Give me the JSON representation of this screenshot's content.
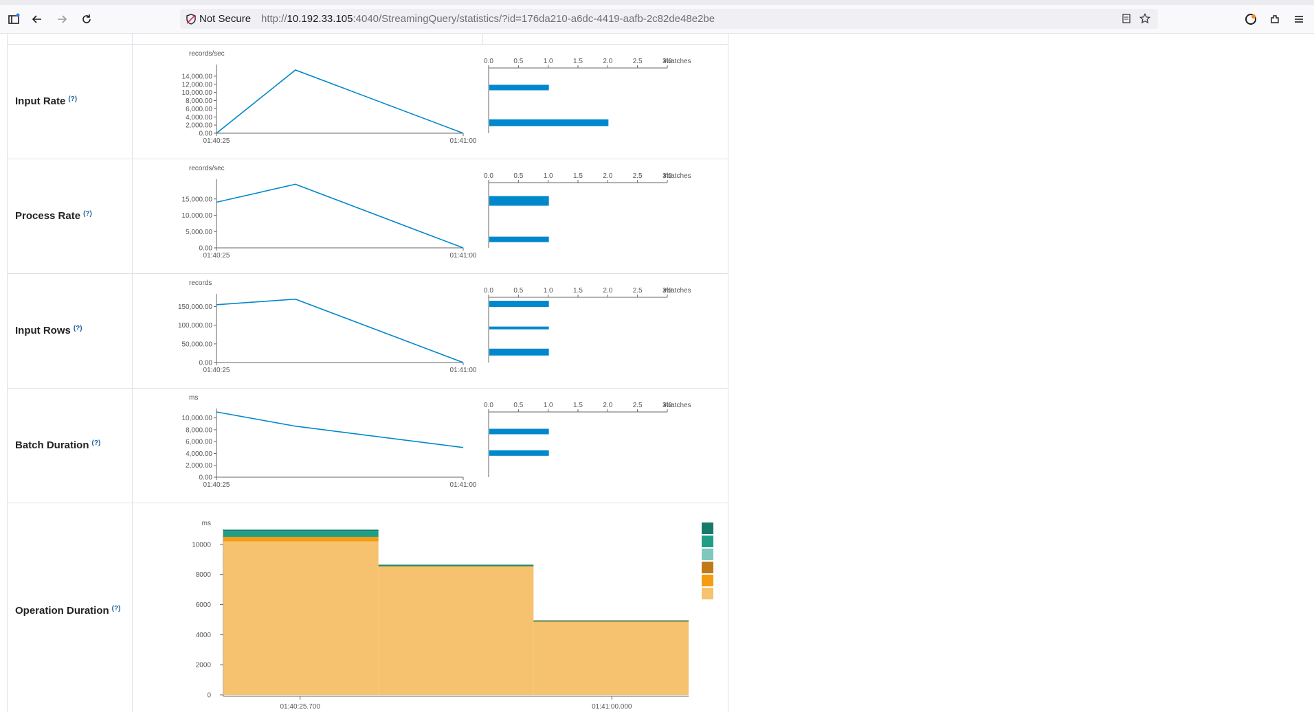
{
  "browser": {
    "security_label": "Not Secure",
    "url_prefix": "http://",
    "url_host": "10.192.33.105",
    "url_rest": ":4040/StreamingQuery/statistics/?id=176da210-a6dc-4419-aafb-2c82de48e2be"
  },
  "rows": [
    {
      "label": "Input Rate",
      "help": "(?)",
      "chart_data": {
        "type": "line",
        "unit": "records/sec",
        "xticks": [
          "01:40:25",
          "01:41:00"
        ],
        "yticks": [
          "0.00",
          "2,000.00",
          "4,000.00",
          "6,000.00",
          "8,000.00",
          "10,000.00",
          "12,000.00",
          "14,000.00"
        ],
        "ymax": 16000,
        "points": [
          [
            0,
            0
          ],
          [
            0.32,
            15500
          ],
          [
            1,
            0
          ]
        ],
        "hist": {
          "unit": "#batches",
          "xticks": [
            "0.0",
            "0.5",
            "1.0",
            "1.5",
            "2.0",
            "2.5",
            "3.0"
          ],
          "xmax": 3,
          "bars": [
            {
              "pos": 0.3,
              "value": 1,
              "thick": 8
            },
            {
              "pos": 0.84,
              "value": 2,
              "thick": 10
            }
          ]
        }
      }
    },
    {
      "label": "Process Rate",
      "help": "(?)",
      "chart_data": {
        "type": "line",
        "unit": "records/sec",
        "xticks": [
          "01:40:25",
          "01:41:00"
        ],
        "yticks": [
          "0.00",
          "5,000.00",
          "10,000.00",
          "15,000.00"
        ],
        "ymax": 20000,
        "points": [
          [
            0,
            14000
          ],
          [
            0.32,
            19500
          ],
          [
            1,
            0
          ]
        ],
        "hist": {
          "unit": "#batches",
          "xticks": [
            "0.0",
            "0.5",
            "1.0",
            "1.5",
            "2.0",
            "2.5",
            "3.0"
          ],
          "xmax": 3,
          "bars": [
            {
              "pos": 0.28,
              "value": 1,
              "thick": 14
            },
            {
              "pos": 0.87,
              "value": 1,
              "thick": 8
            }
          ]
        }
      }
    },
    {
      "label": "Input Rows",
      "help": "(?)",
      "chart_data": {
        "type": "line",
        "unit": "records",
        "xticks": [
          "01:40:25",
          "01:41:00"
        ],
        "yticks": [
          "0.00",
          "50,000.00",
          "100,000.00",
          "150,000.00"
        ],
        "ymax": 175000,
        "points": [
          [
            0,
            155000
          ],
          [
            0.32,
            170000
          ],
          [
            1,
            0
          ]
        ],
        "hist": {
          "unit": "#batches",
          "xticks": [
            "0.0",
            "0.5",
            "1.0",
            "1.5",
            "2.0",
            "2.5",
            "3.0"
          ],
          "xmax": 3,
          "bars": [
            {
              "pos": 0.1,
              "value": 1,
              "thick": 9
            },
            {
              "pos": 0.47,
              "value": 1,
              "thick": 4
            },
            {
              "pos": 0.84,
              "value": 1,
              "thick": 10
            }
          ]
        }
      }
    },
    {
      "label": "Batch Duration",
      "help": "(?)",
      "chart_data": {
        "type": "line",
        "unit": "ms",
        "xticks": [
          "01:40:25",
          "01:41:00"
        ],
        "yticks": [
          "0.00",
          "2,000.00",
          "4,000.00",
          "6,000.00",
          "8,000.00",
          "10,000.00"
        ],
        "ymax": 11000,
        "points": [
          [
            0,
            11000
          ],
          [
            0.32,
            8600
          ],
          [
            1,
            5000
          ]
        ],
        "hist": {
          "unit": "#batches",
          "xticks": [
            "0.0",
            "0.5",
            "1.0",
            "1.5",
            "2.0",
            "2.5",
            "3.0"
          ],
          "xmax": 3,
          "bars": [
            {
              "pos": 0.3,
              "value": 1,
              "thick": 8
            },
            {
              "pos": 0.63,
              "value": 1,
              "thick": 8
            }
          ]
        }
      }
    }
  ],
  "operation": {
    "label": "Operation Duration",
    "help": "(?)",
    "chart_data": {
      "type": "area",
      "unit": "ms",
      "yticks": [
        0,
        2000,
        4000,
        6000,
        8000,
        10000
      ],
      "ymax": 11000,
      "xticks": [
        {
          "label": "01:40:25.700",
          "pos": 0.165
        },
        {
          "label": "01:41:00.000",
          "pos": 0.835
        }
      ],
      "steps": 3,
      "colors": [
        "#f6c26f",
        "#f59c10",
        "#c07a1a",
        "#7ec8be",
        "#1f9e87",
        "#147a6a"
      ],
      "series": [
        [
          10200,
          8500,
          4850
        ],
        [
          300,
          50,
          30
        ],
        [
          0,
          0,
          0
        ],
        [
          0,
          0,
          0
        ],
        [
          400,
          80,
          50
        ],
        [
          80,
          20,
          20
        ]
      ]
    }
  }
}
